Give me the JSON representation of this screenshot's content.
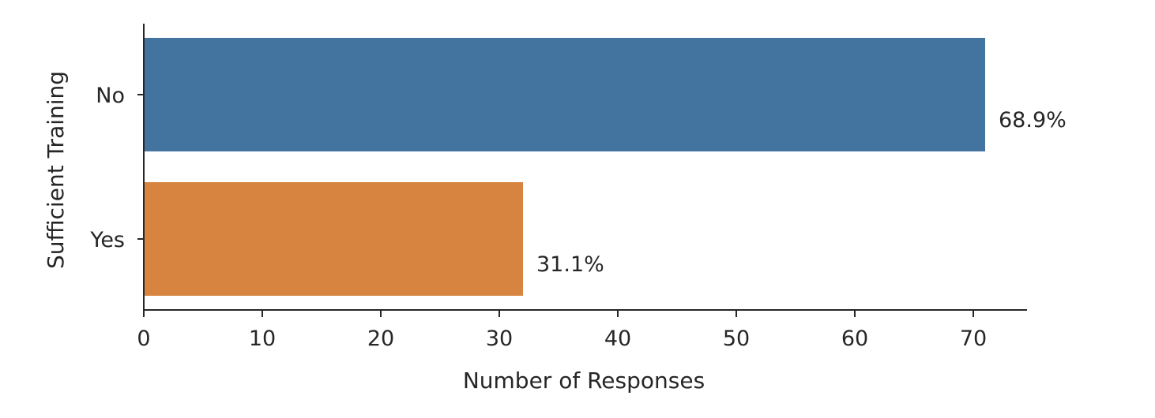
{
  "chart_data": {
    "type": "bar",
    "orientation": "horizontal",
    "categories": [
      "No",
      "Yes"
    ],
    "values": [
      71,
      32
    ],
    "percent_labels": [
      "68.9%",
      "31.1%"
    ],
    "colors": [
      "#4374a0",
      "#d68440"
    ],
    "xlabel": "Number of Responses",
    "ylabel": "Sufficient Training",
    "xlim": [
      0,
      74
    ],
    "xticks": [
      0,
      10,
      20,
      30,
      40,
      50,
      60,
      70
    ],
    "grid": false,
    "legend": "none"
  }
}
